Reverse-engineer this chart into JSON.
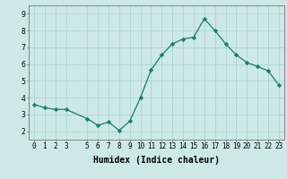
{
  "x": [
    0,
    1,
    2,
    3,
    5,
    6,
    7,
    8,
    9,
    10,
    11,
    12,
    13,
    14,
    15,
    16,
    17,
    18,
    19,
    20,
    21,
    22,
    23
  ],
  "y": [
    3.6,
    3.4,
    3.3,
    3.3,
    2.75,
    2.35,
    2.55,
    2.05,
    2.6,
    4.0,
    5.65,
    6.55,
    7.2,
    7.5,
    7.6,
    8.7,
    8.0,
    7.2,
    6.55,
    6.1,
    5.85,
    5.6,
    4.75
  ],
  "xlabel": "Humidex (Indice chaleur)",
  "ylim": [
    1.5,
    9.5
  ],
  "xlim": [
    -0.5,
    23.5
  ],
  "xticks": [
    0,
    1,
    2,
    3,
    5,
    6,
    7,
    8,
    9,
    10,
    11,
    12,
    13,
    14,
    15,
    16,
    17,
    18,
    19,
    20,
    21,
    22,
    23
  ],
  "yticks": [
    2,
    3,
    4,
    5,
    6,
    7,
    8,
    9
  ],
  "line_color": "#1a7a6e",
  "marker": "D",
  "marker_size": 2.2,
  "bg_color": "#cce9e7",
  "grid_color": "#aed4d1",
  "tick_label_fontsize": 5.5,
  "xlabel_fontsize": 7.0
}
